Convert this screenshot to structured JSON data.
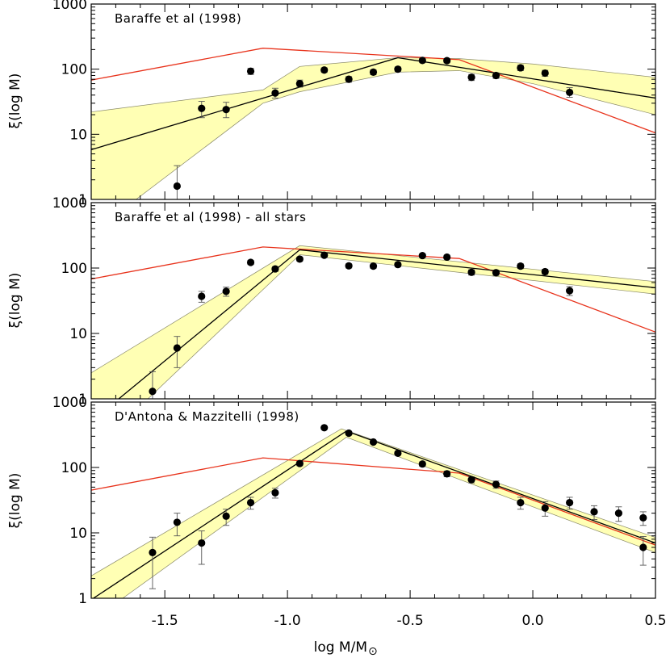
{
  "figure": {
    "xlabel": "log M/M",
    "xlabel_sub": "⊙",
    "ylabel": "ξ(log M)"
  },
  "colors": {
    "band_fill": "#ffffb4",
    "band_stroke": "#8a8a6a",
    "fit_line": "#000000",
    "model_line": "#e8331c",
    "points": "#000000"
  },
  "chart_data": [
    {
      "type": "scatter",
      "title": "Baraffe et al (1998)",
      "xlim": [
        -1.8,
        0.5
      ],
      "ylim": [
        1,
        1000
      ],
      "yscale": "log",
      "xticks": [
        -1.5,
        -1.0,
        -0.5,
        0.0,
        0.5
      ],
      "xtick_labels": [
        "",
        "",
        "",
        "",
        ""
      ],
      "yticks": [
        1,
        10,
        100,
        1000
      ],
      "ytick_labels": [
        "1",
        "10",
        "100",
        "1000"
      ],
      "points": [
        {
          "x": -1.45,
          "y": 1.6,
          "lo": 0.6,
          "hi": 3.3
        },
        {
          "x": -1.35,
          "y": 25,
          "lo": 18,
          "hi": 32
        },
        {
          "x": -1.25,
          "y": 24,
          "lo": 18,
          "hi": 31
        },
        {
          "x": -1.15,
          "y": 93,
          "lo": 83,
          "hi": 103
        },
        {
          "x": -1.05,
          "y": 43,
          "lo": 36,
          "hi": 51
        },
        {
          "x": -0.95,
          "y": 60,
          "lo": 53,
          "hi": 68
        },
        {
          "x": -0.85,
          "y": 97,
          "lo": 89,
          "hi": 105
        },
        {
          "x": -0.75,
          "y": 70,
          "lo": 63,
          "hi": 77
        },
        {
          "x": -0.65,
          "y": 90,
          "lo": 82,
          "hi": 98
        },
        {
          "x": -0.55,
          "y": 100,
          "lo": 92,
          "hi": 108
        },
        {
          "x": -0.45,
          "y": 136,
          "lo": 126,
          "hi": 146
        },
        {
          "x": -0.35,
          "y": 135,
          "lo": 125,
          "hi": 145
        },
        {
          "x": -0.25,
          "y": 75,
          "lo": 67,
          "hi": 83
        },
        {
          "x": -0.15,
          "y": 80,
          "lo": 72,
          "hi": 88
        },
        {
          "x": -0.05,
          "y": 105,
          "lo": 95,
          "hi": 115
        },
        {
          "x": 0.05,
          "y": 87,
          "lo": 78,
          "hi": 96
        },
        {
          "x": 0.15,
          "y": 44,
          "lo": 37,
          "hi": 52
        }
      ],
      "fit_line": [
        [
          -1.8,
          5.8
        ],
        [
          -0.55,
          150
        ],
        [
          0.5,
          36
        ]
      ],
      "model_line": [
        [
          -1.8,
          68
        ],
        [
          -1.1,
          210
        ],
        [
          -0.3,
          140
        ],
        [
          0.5,
          10.5
        ]
      ],
      "band_upper": [
        [
          -1.8,
          22
        ],
        [
          -1.1,
          48
        ],
        [
          -0.95,
          110
        ],
        [
          -0.55,
          150
        ],
        [
          -0.3,
          145
        ],
        [
          0.0,
          120
        ],
        [
          0.5,
          75
        ]
      ],
      "band_lower": [
        [
          -1.8,
          0.3
        ],
        [
          -1.1,
          30
        ],
        [
          -0.95,
          45
        ],
        [
          -0.55,
          90
        ],
        [
          -0.3,
          95
        ],
        [
          0.0,
          60
        ],
        [
          0.5,
          20
        ]
      ]
    },
    {
      "type": "scatter",
      "title": "Baraffe et al (1998) - all stars",
      "xlim": [
        -1.8,
        0.5
      ],
      "ylim": [
        1,
        1000
      ],
      "yscale": "log",
      "xticks": [
        -1.5,
        -1.0,
        -0.5,
        0.0,
        0.5
      ],
      "xtick_labels": [
        "",
        "",
        "",
        "",
        ""
      ],
      "yticks": [
        1,
        10,
        100,
        1000
      ],
      "ytick_labels": [
        "1",
        "10",
        "100",
        "1000"
      ],
      "points": [
        {
          "x": -1.55,
          "y": 1.3,
          "lo": 0.6,
          "hi": 2.6
        },
        {
          "x": -1.45,
          "y": 6,
          "lo": 3,
          "hi": 9
        },
        {
          "x": -1.35,
          "y": 37,
          "lo": 30,
          "hi": 44
        },
        {
          "x": -1.25,
          "y": 44,
          "lo": 37,
          "hi": 51
        },
        {
          "x": -1.15,
          "y": 122,
          "lo": 113,
          "hi": 131
        },
        {
          "x": -1.05,
          "y": 97,
          "lo": 89,
          "hi": 105
        },
        {
          "x": -0.95,
          "y": 137,
          "lo": 127,
          "hi": 147
        },
        {
          "x": -0.85,
          "y": 157,
          "lo": 147,
          "hi": 167
        },
        {
          "x": -0.75,
          "y": 108,
          "lo": 100,
          "hi": 116
        },
        {
          "x": -0.65,
          "y": 107,
          "lo": 99,
          "hi": 115
        },
        {
          "x": -0.55,
          "y": 113,
          "lo": 105,
          "hi": 121
        },
        {
          "x": -0.45,
          "y": 155,
          "lo": 145,
          "hi": 165
        },
        {
          "x": -0.35,
          "y": 147,
          "lo": 137,
          "hi": 157
        },
        {
          "x": -0.25,
          "y": 86,
          "lo": 78,
          "hi": 94
        },
        {
          "x": -0.15,
          "y": 85,
          "lo": 77,
          "hi": 93
        },
        {
          "x": -0.05,
          "y": 107,
          "lo": 98,
          "hi": 116
        },
        {
          "x": 0.05,
          "y": 88,
          "lo": 80,
          "hi": 96
        },
        {
          "x": 0.15,
          "y": 45,
          "lo": 38,
          "hi": 52
        }
      ],
      "fit_line": [
        [
          -1.8,
          0.45
        ],
        [
          -0.95,
          190
        ],
        [
          0.5,
          50
        ]
      ],
      "model_line": [
        [
          -1.8,
          68
        ],
        [
          -1.1,
          210
        ],
        [
          -0.3,
          140
        ],
        [
          0.5,
          10.5
        ]
      ],
      "band_upper": [
        [
          -1.8,
          2.5
        ],
        [
          -0.95,
          220
        ],
        [
          0.5,
          62
        ]
      ],
      "band_lower": [
        [
          -1.8,
          0.15
        ],
        [
          -0.95,
          160
        ],
        [
          0.5,
          40
        ]
      ]
    },
    {
      "type": "scatter",
      "title": "D'Antona & Mazzitelli (1998)",
      "xlim": [
        -1.8,
        0.5
      ],
      "ylim": [
        1,
        1000
      ],
      "yscale": "log",
      "xticks": [
        -1.5,
        -1.0,
        -0.5,
        0.0,
        0.5
      ],
      "xtick_labels": [
        "-1.5",
        "-1.0",
        "-0.5",
        "0.0",
        "0.5"
      ],
      "yticks": [
        1,
        10,
        100,
        1000
      ],
      "ytick_labels": [
        "1",
        "10",
        "100",
        "1000"
      ],
      "points": [
        {
          "x": -1.55,
          "y": 5,
          "lo": 1.4,
          "hi": 8.6
        },
        {
          "x": -1.45,
          "y": 14.5,
          "lo": 9,
          "hi": 20
        },
        {
          "x": -1.35,
          "y": 7,
          "lo": 3.3,
          "hi": 10.7
        },
        {
          "x": -1.25,
          "y": 18,
          "lo": 13,
          "hi": 23
        },
        {
          "x": -1.15,
          "y": 29,
          "lo": 23,
          "hi": 35
        },
        {
          "x": -1.05,
          "y": 41,
          "lo": 34,
          "hi": 48
        },
        {
          "x": -0.95,
          "y": 115,
          "lo": 106,
          "hi": 124
        },
        {
          "x": -0.85,
          "y": 405,
          "lo": 390,
          "hi": 420
        },
        {
          "x": -0.75,
          "y": 335,
          "lo": 320,
          "hi": 350
        },
        {
          "x": -0.65,
          "y": 245,
          "lo": 232,
          "hi": 258
        },
        {
          "x": -0.55,
          "y": 165,
          "lo": 155,
          "hi": 175
        },
        {
          "x": -0.45,
          "y": 113,
          "lo": 104,
          "hi": 122
        },
        {
          "x": -0.35,
          "y": 80,
          "lo": 72,
          "hi": 88
        },
        {
          "x": -0.25,
          "y": 65,
          "lo": 58,
          "hi": 72
        },
        {
          "x": -0.15,
          "y": 55,
          "lo": 48,
          "hi": 62
        },
        {
          "x": -0.05,
          "y": 29,
          "lo": 23,
          "hi": 35
        },
        {
          "x": 0.05,
          "y": 24,
          "lo": 18,
          "hi": 30
        },
        {
          "x": 0.15,
          "y": 29,
          "lo": 23,
          "hi": 35
        },
        {
          "x": 0.25,
          "y": 21,
          "lo": 16,
          "hi": 26
        },
        {
          "x": 0.35,
          "y": 20,
          "lo": 15,
          "hi": 25
        },
        {
          "x": 0.45,
          "y": 17,
          "lo": 13,
          "hi": 21
        },
        {
          "x": 0.45,
          "y": 6,
          "lo": 3.2,
          "hi": 8.8
        }
      ],
      "fit_line": [
        [
          -1.8,
          0.95
        ],
        [
          -0.76,
          360
        ],
        [
          0.5,
          7
        ]
      ],
      "model_line": [
        [
          -1.8,
          45
        ],
        [
          -1.1,
          140
        ],
        [
          -0.3,
          82
        ],
        [
          0.5,
          6.5
        ]
      ],
      "band_upper": [
        [
          -1.8,
          2.2
        ],
        [
          -0.78,
          390
        ],
        [
          0.5,
          8.5
        ]
      ],
      "band_lower": [
        [
          -1.8,
          0.45
        ],
        [
          -0.76,
          290
        ],
        [
          0.5,
          5
        ]
      ]
    }
  ]
}
